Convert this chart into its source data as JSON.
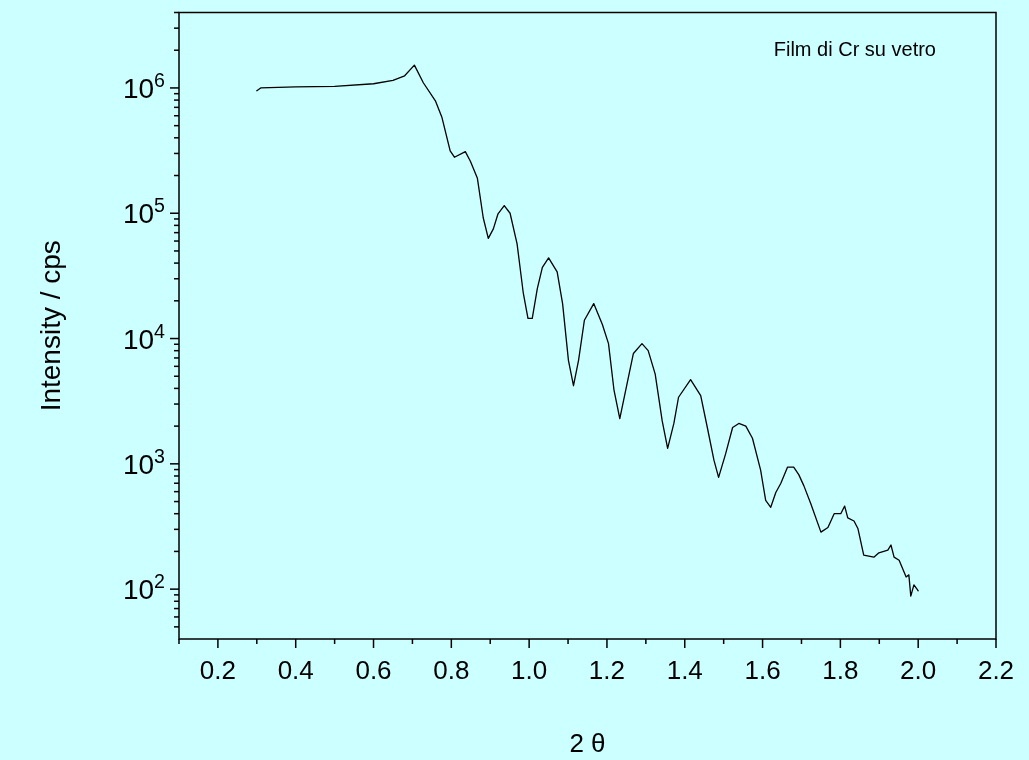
{
  "chart_data": {
    "type": "line",
    "xlabel": "2 θ",
    "ylabel": "Intensity / cps",
    "annotations": [
      "Film di Cr su vetro"
    ],
    "log": "y",
    "grid": false,
    "marker": "none",
    "line_style": "solid",
    "xlim": [
      0.1,
      2.2
    ],
    "xticks": [
      {
        "value": 0.1,
        "label": null
      },
      0.2,
      {
        "value": 0.3,
        "label": null
      },
      0.4,
      {
        "value": 0.5,
        "label": null
      },
      0.6,
      {
        "value": 0.7,
        "label": null
      },
      0.8,
      {
        "value": 0.9,
        "label": null
      },
      {
        "value": 1.0,
        "label": "1.0"
      },
      {
        "value": 1.1,
        "label": null
      },
      1.2,
      {
        "value": 1.3,
        "label": null
      },
      1.4,
      {
        "value": 1.5,
        "label": null
      },
      1.6,
      {
        "value": 1.7,
        "label": null
      },
      1.8,
      {
        "value": 1.9,
        "label": null
      },
      {
        "value": 2.0,
        "label": "2.0"
      },
      {
        "value": 2.1,
        "label": null
      },
      2.2
    ],
    "ylim": [
      40,
      4000000
    ],
    "yticks": [
      {
        "value": 50,
        "label": null
      },
      {
        "value": 60,
        "label": null
      },
      {
        "value": 70,
        "label": null
      },
      {
        "value": 80,
        "label": null
      },
      {
        "value": 90,
        "label": null
      },
      {
        "value": 100,
        "label": "10$^{2}$"
      },
      {
        "value": 200,
        "label": null
      },
      {
        "value": 300,
        "label": null
      },
      {
        "value": 400,
        "label": null
      },
      {
        "value": 500,
        "label": null
      },
      {
        "value": 600,
        "label": null
      },
      {
        "value": 700,
        "label": null
      },
      {
        "value": 800,
        "label": null
      },
      {
        "value": 900,
        "label": null
      },
      {
        "value": 1000,
        "label": "10$^{3}$"
      },
      {
        "value": 2000,
        "label": null
      },
      {
        "value": 3000,
        "label": null
      },
      {
        "value": 4000,
        "label": null
      },
      {
        "value": 5000,
        "label": null
      },
      {
        "value": 6000,
        "label": null
      },
      {
        "value": 7000,
        "label": null
      },
      {
        "value": 8000,
        "label": null
      },
      {
        "value": 9000,
        "label": null
      },
      {
        "value": 10000,
        "label": "10$^{4}$"
      },
      {
        "value": 20000,
        "label": null
      },
      {
        "value": 30000,
        "label": null
      },
      {
        "value": 40000,
        "label": null
      },
      {
        "value": 50000,
        "label": null
      },
      {
        "value": 60000,
        "label": null
      },
      {
        "value": 70000,
        "label": null
      },
      {
        "value": 80000,
        "label": null
      },
      {
        "value": 90000,
        "label": null
      },
      {
        "value": 100000,
        "label": "10$^{5}$"
      },
      {
        "value": 200000,
        "label": null
      },
      {
        "value": 300000,
        "label": null
      },
      {
        "value": 400000,
        "label": null
      },
      {
        "value": 500000,
        "label": null
      },
      {
        "value": 600000,
        "label": null
      },
      {
        "value": 700000,
        "label": null
      },
      {
        "value": 800000,
        "label": null
      },
      {
        "value": 900000,
        "label": null
      },
      {
        "value": 1000000,
        "label": "10$^{6}$"
      },
      {
        "value": 2000000,
        "label": null
      },
      {
        "value": 3000000,
        "label": null
      },
      {
        "value": 4000000,
        "label": null
      }
    ],
    "series": [
      {
        "color": "#000000",
        "x": [
          0.3,
          0.31,
          0.4,
          0.5,
          0.6,
          0.65,
          0.68,
          0.705,
          0.728,
          0.759,
          0.776,
          0.797,
          0.808,
          0.836,
          0.849,
          0.867,
          0.882,
          0.895,
          0.908,
          0.92,
          0.936,
          0.951,
          0.969,
          0.985,
          0.997,
          1.008,
          1.021,
          1.034,
          1.05,
          1.072,
          1.086,
          1.101,
          1.114,
          1.127,
          1.142,
          1.166,
          1.188,
          1.204,
          1.218,
          1.233,
          1.252,
          1.268,
          1.29,
          1.306,
          1.324,
          1.342,
          1.356,
          1.372,
          1.384,
          1.415,
          1.441,
          1.458,
          1.475,
          1.487,
          1.505,
          1.523,
          1.539,
          1.557,
          1.574,
          1.595,
          1.608,
          1.621,
          1.634,
          1.647,
          1.664,
          1.68,
          1.693,
          1.706,
          1.724,
          1.75,
          1.768,
          1.784,
          1.801,
          1.811,
          1.819,
          1.835,
          1.845,
          1.86,
          1.886,
          1.899,
          1.922,
          1.93,
          1.938,
          1.951,
          1.969,
          1.976,
          1.981,
          1.989,
          1.997,
          2.0
        ],
        "values": [
          950000,
          1000000,
          1020000,
          1030000,
          1080000,
          1150000,
          1250000,
          1520000,
          1100000,
          790000,
          580000,
          315000,
          280000,
          310000,
          260000,
          190000,
          92000,
          63000,
          75000,
          99000,
          115000,
          100000,
          57000,
          23000,
          14500,
          14500,
          25000,
          37000,
          44000,
          34000,
          19000,
          6700,
          4200,
          6700,
          14000,
          19000,
          13000,
          9100,
          3900,
          2300,
          4400,
          7600,
          9100,
          8000,
          5200,
          2200,
          1330,
          2100,
          3400,
          4700,
          3500,
          1950,
          1070,
          780,
          1200,
          1950,
          2100,
          2000,
          1600,
          890,
          510,
          450,
          590,
          700,
          940,
          940,
          820,
          670,
          480,
          285,
          310,
          400,
          400,
          460,
          370,
          350,
          305,
          187,
          180,
          195,
          205,
          225,
          180,
          170,
          125,
          130,
          88,
          108,
          100,
          97
        ]
      }
    ]
  }
}
